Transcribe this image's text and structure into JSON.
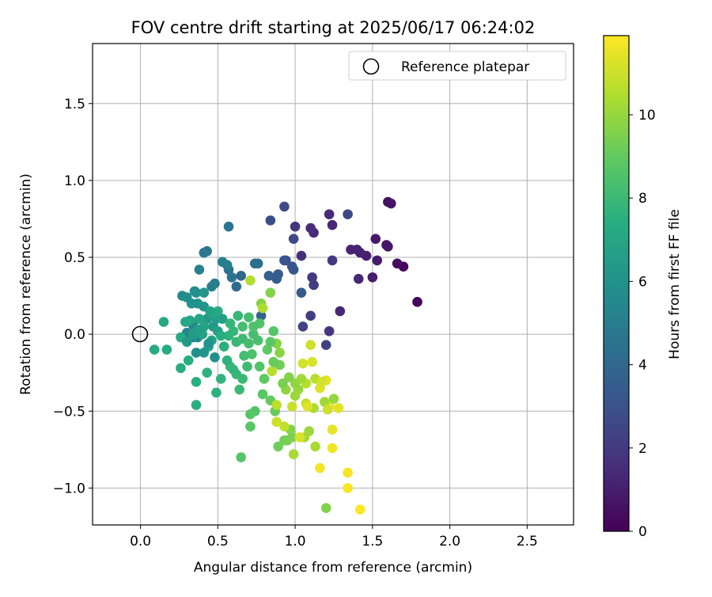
{
  "chart_data": {
    "type": "scatter",
    "title": "FOV centre drift starting at 2025/06/17 06:24:02",
    "xlabel": "Angular distance from reference (arcmin)",
    "ylabel": "Rotation from reference (arcmin)",
    "xlim": [
      -0.31,
      2.8
    ],
    "ylim": [
      -1.24,
      1.89
    ],
    "x_ticks": [
      {
        "value": 0.0,
        "label": "0.0"
      },
      {
        "value": 0.5,
        "label": "0.5"
      },
      {
        "value": 1.0,
        "label": "1.0"
      },
      {
        "value": 1.5,
        "label": "1.5"
      },
      {
        "value": 2.0,
        "label": "2.0"
      },
      {
        "value": 2.5,
        "label": "2.5"
      }
    ],
    "y_ticks": [
      {
        "value": -1.0,
        "label": "−1.0"
      },
      {
        "value": -0.5,
        "label": "−0.5"
      },
      {
        "value": 0.0,
        "label": "0.0"
      },
      {
        "value": 0.5,
        "label": "0.5"
      },
      {
        "value": 1.0,
        "label": "1.0"
      },
      {
        "value": 1.5,
        "label": "1.5"
      }
    ],
    "grid": true,
    "legend": {
      "position": "top-right",
      "entries": [
        "Reference platepar"
      ]
    },
    "reference_point": {
      "name": "Reference platepar",
      "x": 0.0,
      "y": 0.0
    },
    "colorbar": {
      "label": "Hours from first FF file",
      "colormap": "viridis",
      "range": [
        0,
        11.9
      ],
      "ticks": [
        {
          "value": 0,
          "label": "0"
        },
        {
          "value": 2,
          "label": "2"
        },
        {
          "value": 4,
          "label": "4"
        },
        {
          "value": 6,
          "label": "6"
        },
        {
          "value": 8,
          "label": "8"
        },
        {
          "value": 10,
          "label": "10"
        }
      ]
    },
    "points": [
      [
        1.79,
        0.21,
        0.1
      ],
      [
        1.7,
        0.44,
        0.3
      ],
      [
        1.66,
        0.46,
        0.4
      ],
      [
        1.6,
        0.86,
        0.5
      ],
      [
        1.62,
        0.85,
        0.6
      ],
      [
        1.59,
        0.58,
        0.7
      ],
      [
        1.6,
        0.57,
        0.75
      ],
      [
        1.52,
        0.62,
        0.8
      ],
      [
        1.53,
        0.48,
        0.9
      ],
      [
        1.5,
        0.37,
        1.0
      ],
      [
        1.46,
        0.51,
        1.0
      ],
      [
        1.42,
        0.53,
        1.1
      ],
      [
        1.4,
        0.55,
        1.15
      ],
      [
        1.36,
        0.55,
        1.2
      ],
      [
        1.41,
        0.36,
        1.3
      ],
      [
        1.29,
        0.15,
        1.3
      ],
      [
        1.24,
        0.71,
        1.3
      ],
      [
        1.22,
        0.78,
        1.4
      ],
      [
        1.12,
        0.66,
        1.4
      ],
      [
        1.1,
        0.69,
        1.5
      ],
      [
        1.04,
        0.51,
        1.6
      ],
      [
        1.0,
        0.7,
        1.8
      ],
      [
        1.24,
        0.48,
        1.9
      ],
      [
        1.22,
        0.02,
        1.9
      ],
      [
        1.11,
        0.37,
        2.0
      ],
      [
        1.12,
        0.32,
        2.1
      ],
      [
        1.1,
        0.12,
        2.2
      ],
      [
        1.2,
        -0.07,
        2.3
      ],
      [
        1.05,
        0.05,
        2.4
      ],
      [
        1.34,
        0.78,
        2.5
      ],
      [
        0.99,
        0.62,
        2.6
      ],
      [
        0.93,
        0.83,
        2.7
      ],
      [
        0.84,
        0.74,
        2.8
      ],
      [
        0.94,
        0.48,
        2.9
      ],
      [
        0.93,
        0.48,
        3.0
      ],
      [
        0.98,
        0.44,
        3.1
      ],
      [
        0.99,
        0.42,
        3.2
      ],
      [
        1.04,
        0.27,
        3.3
      ],
      [
        0.89,
        0.39,
        3.4
      ],
      [
        0.88,
        0.36,
        3.5
      ],
      [
        0.83,
        0.38,
        3.6
      ],
      [
        0.78,
        0.12,
        3.8
      ],
      [
        0.65,
        0.38,
        4.0
      ],
      [
        0.62,
        0.31,
        4.1
      ],
      [
        0.74,
        0.46,
        4.2
      ],
      [
        0.76,
        0.46,
        4.3
      ],
      [
        0.57,
        0.42,
        4.4
      ],
      [
        0.59,
        0.37,
        4.5
      ],
      [
        0.57,
        0.7,
        4.6
      ],
      [
        0.43,
        0.54,
        4.7
      ],
      [
        0.41,
        0.53,
        4.8
      ],
      [
        0.48,
        0.33,
        4.9
      ],
      [
        0.53,
        0.47,
        5.0
      ],
      [
        0.56,
        0.45,
        5.0
      ],
      [
        0.46,
        0.31,
        5.1
      ],
      [
        0.38,
        0.42,
        5.2
      ],
      [
        0.34,
        0.06,
        5.3
      ],
      [
        0.3,
        0.01,
        5.4
      ],
      [
        0.34,
        -0.02,
        5.4
      ],
      [
        0.37,
        -0.02,
        5.5
      ],
      [
        0.27,
        0.25,
        5.6
      ],
      [
        0.3,
        0.24,
        5.7
      ],
      [
        0.35,
        0.28,
        5.8
      ],
      [
        0.36,
        0.27,
        5.9
      ],
      [
        0.33,
        0.2,
        6.0
      ],
      [
        0.37,
        0.2,
        6.0
      ],
      [
        0.41,
        0.27,
        6.1
      ],
      [
        0.41,
        0.18,
        6.2
      ],
      [
        0.43,
        0.1,
        6.3
      ],
      [
        0.47,
        0.05,
        6.4
      ],
      [
        0.49,
        0.1,
        6.5
      ],
      [
        0.53,
        0.1,
        6.6
      ],
      [
        0.5,
        0.02,
        6.7
      ],
      [
        0.46,
        -0.04,
        6.8
      ],
      [
        0.44,
        -0.08,
        6.9
      ],
      [
        0.41,
        0.05,
        6.9
      ],
      [
        0.38,
        0.1,
        7.0
      ],
      [
        0.32,
        0.09,
        7.0
      ],
      [
        0.29,
        0.08,
        7.1
      ],
      [
        0.26,
        -0.02,
        7.2
      ],
      [
        0.15,
        0.08,
        7.2
      ],
      [
        0.09,
        -0.1,
        7.3
      ],
      [
        0.17,
        -0.1,
        7.3
      ],
      [
        0.26,
        -0.22,
        7.4
      ],
      [
        0.31,
        -0.17,
        7.4
      ],
      [
        0.36,
        -0.31,
        7.5
      ],
      [
        0.36,
        -0.46,
        7.5
      ],
      [
        0.43,
        -0.25,
        7.6
      ],
      [
        0.49,
        -0.38,
        7.6
      ],
      [
        0.52,
        -0.29,
        7.7
      ],
      [
        0.57,
        -0.01,
        7.7
      ],
      [
        0.6,
        0.02,
        7.8
      ],
      [
        0.58,
        0.07,
        7.8
      ],
      [
        0.63,
        0.12,
        7.9
      ],
      [
        0.62,
        -0.05,
        7.9
      ],
      [
        0.58,
        -0.21,
        8.0
      ],
      [
        0.64,
        -0.36,
        8.0
      ],
      [
        0.66,
        -0.03,
        8.1
      ],
      [
        0.66,
        0.05,
        8.2
      ],
      [
        0.7,
        0.11,
        8.2
      ],
      [
        0.73,
        0.0,
        8.3
      ],
      [
        0.76,
        -0.04,
        8.4
      ],
      [
        0.72,
        -0.13,
        8.5
      ],
      [
        0.77,
        -0.21,
        8.6
      ],
      [
        0.74,
        -0.5,
        8.6
      ],
      [
        0.71,
        -0.52,
        8.7
      ],
      [
        0.65,
        -0.8,
        8.7
      ],
      [
        0.71,
        -0.6,
        8.8
      ],
      [
        0.79,
        -0.39,
        8.8
      ],
      [
        0.8,
        -0.29,
        8.9
      ],
      [
        0.84,
        -0.43,
        9.0
      ],
      [
        0.87,
        -0.5,
        9.1
      ],
      [
        0.89,
        -0.73,
        9.2
      ],
      [
        0.93,
        -0.69,
        9.3
      ],
      [
        0.95,
        -0.69,
        9.4
      ],
      [
        0.98,
        -0.67,
        9.5
      ],
      [
        0.97,
        -0.62,
        9.6
      ],
      [
        0.84,
        0.27,
        9.6
      ],
      [
        0.78,
        0.2,
        9.7
      ],
      [
        0.88,
        -0.06,
        9.7
      ],
      [
        0.9,
        -0.12,
        9.8
      ],
      [
        0.94,
        -0.36,
        9.9
      ],
      [
        1.02,
        -0.36,
        10.0
      ],
      [
        1.0,
        -0.4,
        10.1
      ],
      [
        1.09,
        -0.63,
        10.1
      ],
      [
        1.06,
        -0.67,
        10.2
      ],
      [
        1.13,
        -0.73,
        10.3
      ],
      [
        0.99,
        -0.78,
        10.3
      ],
      [
        0.79,
        0.17,
        10.4
      ],
      [
        0.71,
        0.35,
        10.5
      ],
      [
        0.85,
        -0.24,
        10.6
      ],
      [
        0.88,
        -0.46,
        10.7
      ],
      [
        0.93,
        -0.6,
        10.8
      ],
      [
        0.98,
        -0.47,
        10.9
      ],
      [
        1.1,
        -0.07,
        11.0
      ],
      [
        1.05,
        -0.19,
        11.1
      ],
      [
        1.11,
        -0.18,
        11.2
      ],
      [
        1.16,
        -0.35,
        11.3
      ],
      [
        1.2,
        -0.3,
        11.4
      ],
      [
        1.22,
        -0.47,
        11.5
      ],
      [
        1.24,
        -0.62,
        11.5
      ],
      [
        1.24,
        -0.74,
        11.6
      ],
      [
        1.16,
        -0.87,
        11.7
      ],
      [
        1.34,
        -0.9,
        11.8
      ],
      [
        1.34,
        -1.0,
        11.8
      ],
      [
        1.42,
        -1.14,
        11.9
      ],
      [
        1.2,
        -1.13,
        9.6
      ],
      [
        1.03,
        -0.67,
        11.2
      ],
      [
        0.88,
        -0.57,
        11.0
      ],
      [
        1.07,
        -0.45,
        10.8
      ],
      [
        1.19,
        -0.44,
        10.2
      ],
      [
        1.25,
        -0.42,
        10.0
      ],
      [
        1.28,
        -0.48,
        11.4
      ],
      [
        1.21,
        -0.49,
        11.0
      ],
      [
        1.12,
        -0.48,
        10.4
      ],
      [
        1.08,
        -0.47,
        11.3
      ],
      [
        1.13,
        -0.29,
        10.6
      ],
      [
        1.17,
        -0.31,
        11.1
      ],
      [
        1.07,
        -0.32,
        10.6
      ],
      [
        1.04,
        -0.29,
        10.2
      ],
      [
        1.0,
        -0.32,
        9.9
      ],
      [
        0.96,
        -0.28,
        9.6
      ],
      [
        0.92,
        -0.32,
        9.4
      ],
      [
        0.9,
        -0.2,
        9.3
      ],
      [
        0.86,
        -0.18,
        9.1
      ],
      [
        0.82,
        -0.1,
        8.9
      ],
      [
        0.84,
        -0.05,
        8.8
      ],
      [
        0.86,
        0.02,
        8.7
      ],
      [
        0.77,
        0.07,
        8.6
      ],
      [
        0.73,
        0.05,
        8.5
      ],
      [
        0.7,
        -0.06,
        8.3
      ],
      [
        0.67,
        -0.14,
        8.2
      ],
      [
        0.69,
        -0.21,
        8.1
      ],
      [
        0.66,
        -0.29,
        8.0
      ],
      [
        0.62,
        -0.26,
        7.9
      ],
      [
        0.6,
        -0.23,
        7.8
      ],
      [
        0.56,
        -0.17,
        7.6
      ],
      [
        0.54,
        -0.08,
        7.5
      ],
      [
        0.52,
        -0.01,
        7.4
      ],
      [
        0.5,
        0.15,
        7.3
      ],
      [
        0.47,
        0.13,
        7.1
      ],
      [
        0.45,
        0.15,
        6.9
      ],
      [
        0.4,
        0.0,
        6.8
      ],
      [
        0.37,
        0.03,
        6.6
      ],
      [
        0.34,
        0.0,
        6.5
      ],
      [
        0.3,
        -0.05,
        6.3
      ],
      [
        0.41,
        -0.12,
        6.2
      ],
      [
        0.44,
        -0.06,
        6.0
      ],
      [
        0.48,
        -0.15,
        5.9
      ],
      [
        0.36,
        -0.12,
        5.8
      ]
    ]
  }
}
